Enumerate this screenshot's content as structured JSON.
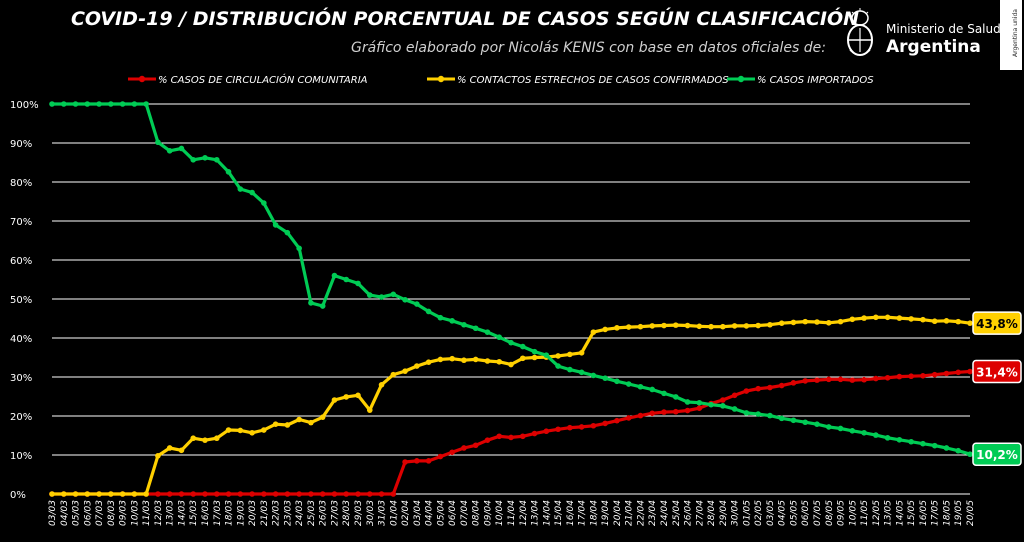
{
  "header": {
    "title": "COVID-19  /  DISTRIBUCIÓN PORCENTUAL DE CASOS SEGÚN CLASIFICACIÓN",
    "subtitle": "Gráfico elaborado por Nicolás KENIS con base en datos oficiales de:"
  },
  "logo": {
    "ministry": "Ministerio de Salud",
    "country": "Argentina",
    "side_tag": "Argentina unida"
  },
  "colors": {
    "background": "#000000",
    "grid": "#ffffff",
    "comunitaria": "#dd0000",
    "contactos": "#ffd000",
    "importados": "#00cc55"
  },
  "chart_data": {
    "type": "line",
    "title": "COVID-19  /  DISTRIBUCIÓN PORCENTUAL DE CASOS SEGÚN CLASIFICACIÓN",
    "xlabel": "",
    "ylabel": "",
    "ylim": [
      0,
      100
    ],
    "y_ticks": [
      "0%",
      "10%",
      "20%",
      "30%",
      "40%",
      "50%",
      "60%",
      "70%",
      "80%",
      "90%",
      "100%"
    ],
    "grid": true,
    "legend_position": "top",
    "x_tick_labels": [
      "03/03",
      "04/03",
      "05/03",
      "06/03",
      "07/03",
      "08/03",
      "09/03",
      "10/03",
      "11/03",
      "12/03",
      "13/03",
      "14/03",
      "15/03",
      "16/03",
      "17/03",
      "18/03",
      "19/03",
      "20/03",
      "21/03",
      "22/03",
      "23/03",
      "24/03",
      "25/03",
      "26/03",
      "27/03",
      "28/03",
      "29/03",
      "30/03",
      "31/03",
      "01/04",
      "02/04",
      "03/04",
      "04/04",
      "05/04",
      "06/04",
      "07/04",
      "08/04",
      "09/04",
      "10/04",
      "11/04",
      "12/04",
      "13/04",
      "14/04",
      "15/04",
      "16/04",
      "17/04",
      "18/04",
      "19/04",
      "20/04",
      "21/04",
      "22/04",
      "23/04",
      "24/04",
      "25/04",
      "26/04",
      "27/04",
      "28/04",
      "29/04",
      "30/04",
      "01/05",
      "02/05",
      "03/05",
      "04/05",
      "05/05",
      "06/05",
      "07/05",
      "08/05",
      "09/05",
      "10/05",
      "11/05",
      "12/05",
      "13/05",
      "14/05",
      "15/05",
      "16/05",
      "17/05",
      "18/05",
      "19/05",
      "20/05"
    ],
    "series": [
      {
        "name": "% CASOS DE CIRCULACIÓN COMUNITARIA",
        "color": "#dd0000",
        "end_label": "31,4%",
        "values": [
          0,
          0,
          0,
          0,
          0,
          0,
          0,
          0,
          0,
          0,
          0,
          0,
          0,
          0,
          0,
          0,
          0,
          0,
          0,
          0,
          0,
          0,
          0,
          0,
          0,
          0,
          0,
          0,
          0,
          0,
          8.2,
          8.5,
          8.5,
          9.6,
          10.7,
          11.8,
          12.5,
          13.8,
          14.8,
          14.5,
          14.8,
          15.5,
          16.1,
          16.6,
          17,
          17.2,
          17.5,
          18.1,
          18.8,
          19.5,
          20.1,
          20.7,
          21,
          21.1,
          21.4,
          22,
          23.2,
          24.1,
          25.3,
          26.4,
          27,
          27.3,
          27.8,
          28.5,
          29,
          29.2,
          29.4,
          29.4,
          29.2,
          29.3,
          29.6,
          29.8,
          30.1,
          30.2,
          30.3,
          30.6,
          30.9,
          31.2,
          31.4
        ]
      },
      {
        "name": "% CONTACTOS ESTRECHOS DE CASOS CONFIRMADOS",
        "color": "#ffd000",
        "end_label": "43,8%",
        "values": [
          0,
          0,
          0,
          0,
          0,
          0,
          0,
          0,
          0,
          9.8,
          11.8,
          11.2,
          14.3,
          13.8,
          14.3,
          16.4,
          16.3,
          15.7,
          16.4,
          17.9,
          17.7,
          19.1,
          18.3,
          19.7,
          24.1,
          24.9,
          25.3,
          21.5,
          28,
          30.6,
          31.5,
          32.8,
          33.8,
          34.5,
          34.7,
          34.3,
          34.5,
          34.1,
          33.9,
          33.2,
          34.8,
          35,
          35.1,
          35.4,
          35.8,
          36.2,
          41.5,
          42.2,
          42.6,
          42.8,
          42.9,
          43.1,
          43.2,
          43.3,
          43.2,
          43,
          42.9,
          42.9,
          43.1,
          43.1,
          43.2,
          43.4,
          43.8,
          44,
          44.2,
          44.1,
          43.9,
          44.2,
          44.8,
          45.1,
          45.3,
          45.3,
          45.1,
          44.9,
          44.7,
          44.3,
          44.4,
          44.2,
          43.8
        ]
      },
      {
        "name": "% CASOS IMPORTADOS",
        "color": "#00cc55",
        "end_label": "10,2%",
        "values": [
          100,
          100,
          100,
          100,
          100,
          100,
          100,
          100,
          100,
          90.2,
          88,
          88.6,
          85.7,
          86.2,
          85.7,
          82.6,
          78.2,
          77.3,
          74.6,
          69,
          67,
          63,
          49,
          48.2,
          56,
          55,
          54,
          51,
          50.5,
          51.2,
          49.8,
          48.7,
          46.8,
          45.2,
          44.4,
          43.4,
          42.5,
          41.5,
          40.2,
          38.8,
          37.8,
          36.5,
          35.6,
          32.8,
          31.9,
          31.2,
          30.4,
          29.7,
          28.9,
          28.2,
          27.5,
          26.8,
          25.8,
          24.9,
          23.6,
          23.4,
          22.9,
          22.6,
          21.8,
          20.8,
          20.5,
          20.1,
          19.4,
          18.9,
          18.4,
          17.9,
          17.2,
          16.8,
          16.2,
          15.7,
          15.1,
          14.4,
          13.9,
          13.4,
          12.9,
          12.4,
          11.8,
          11.1,
          10.2
        ]
      }
    ]
  }
}
